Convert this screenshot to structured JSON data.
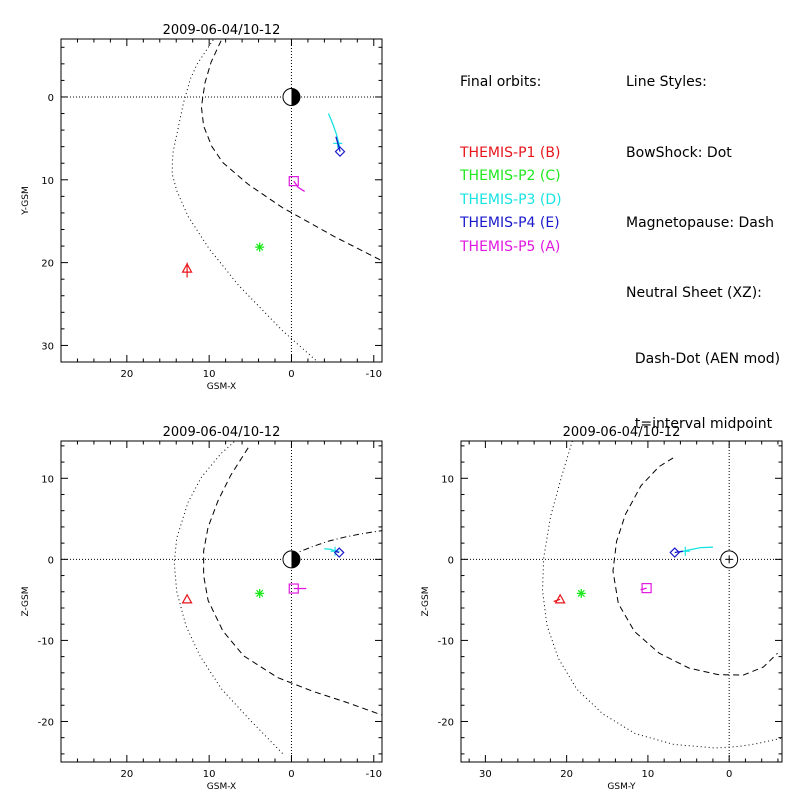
{
  "legend": {
    "orbits_title": "Final orbits:",
    "probes": [
      {
        "label": "THEMIS-P1 (B)",
        "color": "#e8151b"
      },
      {
        "label": "THEMIS-P2 (C)",
        "color": "#1ee81e"
      },
      {
        "label": "THEMIS-P3 (D)",
        "color": "#17e3e3"
      },
      {
        "label": "THEMIS-P4 (E)",
        "color": "#1a1acc"
      },
      {
        "label": "THEMIS-P5 (A)",
        "color": "#e019e0"
      }
    ],
    "styles_title": "Line Styles:",
    "styles": [
      "BowShock: Dot",
      "Magnetopause: Dash",
      "Neutral Sheet (XZ):",
      "  Dash-Dot (AEN mod)",
      "  t=interval midpoint"
    ]
  },
  "chart_data": [
    {
      "type": "scatter",
      "title": "2009-06-04/10-12",
      "xlabel": "GSM-X",
      "ylabel": "Y-GSM",
      "xlim": [
        28,
        -11
      ],
      "ylim": [
        -7,
        32
      ],
      "xticks": [
        20,
        10,
        0,
        -10
      ],
      "yticks": [
        0,
        10,
        20,
        30
      ],
      "earth": "half",
      "bowshock": {
        "x": [
          7.04,
          9.43,
          11.46,
          12.27,
          13.11,
          14.37,
          14.47,
          14.49,
          13.94,
          12.54,
          10.03,
          6.42,
          1.13,
          -4.38
        ],
        "y": [
          -9.22,
          -7.02,
          -3.96,
          -2.2,
          0.68,
          6.58,
          7.93,
          9.29,
          11.31,
          14.45,
          18.29,
          22.75,
          28.18,
          33.05
        ]
      },
      "magnetopause": {
        "x": [
          8.55,
          9.76,
          10.51,
          10.94,
          10.67,
          9.68,
          8.33,
          5.26,
          1.06,
          -5.26,
          -11.0
        ],
        "y": [
          -6.8,
          -4.22,
          -1.71,
          1.19,
          3.51,
          5.97,
          7.93,
          10.54,
          13.38,
          16.88,
          19.78
        ]
      },
      "probes": [
        {
          "name": "THEMIS-P1 (B)",
          "marker": "triangle",
          "x": 12.68,
          "y": 20.71,
          "track": {
            "x": [
              12.6,
              12.72,
              12.8
            ],
            "y": 20.0,
            "y_end": 21.8
          }
        },
        {
          "name": "THEMIS-P2 (C)",
          "marker": "asterisk",
          "x": 3.86,
          "y": 18.13
        },
        {
          "name": "THEMIS-P3 (D)",
          "marker": "cross",
          "x": -5.62,
          "y": 5.6,
          "track": {
            "x": [
              -4.5,
              -5.0,
              -5.5,
              -5.9
            ],
            "y": [
              2.0,
              3.2,
              4.6,
              6.2
            ]
          }
        },
        {
          "name": "THEMIS-P4 (E)",
          "marker": "diamond",
          "x": -5.9,
          "y": 6.6,
          "track": {
            "x": [
              -5.4,
              -5.7,
              -5.9
            ],
            "y": [
              4.8,
              5.8,
              6.6
            ]
          }
        },
        {
          "name": "THEMIS-P5 (A)",
          "marker": "square",
          "x": -0.28,
          "y": 10.16,
          "track": {
            "x": [
              -0.28,
              -0.8,
              -1.6
            ],
            "y": [
              10.16,
              10.9,
              11.4
            ]
          }
        }
      ]
    },
    {
      "type": "scatter",
      "title": "2009-06-04/10-12",
      "xlabel": "GSM-X",
      "ylabel": "Z-GSM",
      "xlim": [
        28,
        -11
      ],
      "ylim": [
        -25,
        14.6
      ],
      "xticks": [
        20,
        10,
        0,
        -10
      ],
      "yticks": [
        10,
        0,
        -10,
        -20
      ],
      "earth": "half",
      "bowshock": {
        "x": [
          6.96,
          8.55,
          10.94,
          12.57,
          13.94,
          14.24,
          13.94,
          12.8,
          11.12,
          8.55,
          5.26,
          1.06
        ],
        "y": [
          14.5,
          13.06,
          10.13,
          7.02,
          2.62,
          -0.43,
          -3.97,
          -8.24,
          -11.9,
          -15.93,
          -19.58,
          -23.97
        ]
      },
      "magnetopause": {
        "x": [
          5.26,
          7.37,
          8.91,
          10.13,
          10.67,
          10.67,
          10.13,
          8.33,
          5.81,
          1.69,
          -2.61,
          -6.66,
          -11.0
        ],
        "y": [
          13.76,
          10.38,
          7.26,
          3.97,
          1.04,
          -2.0,
          -5.06,
          -8.84,
          -11.9,
          -14.58,
          -16.29,
          -17.63,
          -19.21
        ]
      },
      "neutral_sheet": {
        "x": [
          0.0,
          -1.0,
          -2.5,
          -4.5,
          -6.5,
          -8.5,
          -11.0
        ],
        "y": [
          0.5,
          0.95,
          1.55,
          2.25,
          2.75,
          3.15,
          3.55
        ]
      },
      "probes": [
        {
          "name": "THEMIS-P1 (B)",
          "marker": "triangle",
          "x": 12.68,
          "y": -4.93
        },
        {
          "name": "THEMIS-P2 (C)",
          "marker": "asterisk",
          "x": 3.86,
          "y": -4.2
        },
        {
          "name": "THEMIS-P3 (D)",
          "marker": "cross",
          "x": -5.3,
          "y": 1.0,
          "track": {
            "x": [
              -4.0,
              -4.8,
              -5.6
            ],
            "y": [
              1.3,
              1.25,
              0.9
            ]
          }
        },
        {
          "name": "THEMIS-P4 (E)",
          "marker": "diamond",
          "x": -5.8,
          "y": 0.84,
          "track": {
            "x": [
              -5.3,
              -5.8
            ],
            "y": [
              1.0,
              0.84
            ]
          }
        },
        {
          "name": "THEMIS-P5 (A)",
          "marker": "square",
          "x": -0.28,
          "y": -3.6,
          "track": {
            "x": [
              -0.28,
              -1.8
            ],
            "y": [
              -3.6,
              -3.6
            ]
          }
        }
      ]
    },
    {
      "type": "scatter",
      "title": "2009-06-04/10-12",
      "xlabel": "GSM-Y",
      "ylabel": "Z-GSM",
      "xlim": [
        33,
        -6.5
      ],
      "ylim": [
        -25,
        14.6
      ],
      "xticks": [
        30,
        20,
        10,
        0
      ],
      "yticks": [
        10,
        0,
        -10,
        -20
      ],
      "earth": "full",
      "bowshock": {
        "x": [
          19.3,
          20.65,
          21.97,
          22.82,
          22.97,
          22.44,
          21.02,
          18.75,
          15.56,
          11.56,
          6.79,
          1.68,
          -1.09,
          -3.14,
          -6.5
        ],
        "y": [
          14.6,
          10.13,
          5.32,
          0.2,
          -3.79,
          -8.07,
          -12.22,
          -16.01,
          -19.06,
          -21.5,
          -22.84,
          -23.27,
          -23.09,
          -22.79,
          -22.05
        ]
      },
      "magnetopause": {
        "x": [
          6.9,
          8.65,
          10.86,
          12.76,
          13.86,
          14.3,
          13.64,
          11.65,
          8.61,
          4.93,
          1.37,
          -1.73,
          -4.22,
          -5.95
        ],
        "y": [
          12.51,
          11.42,
          9.07,
          5.56,
          2.21,
          -1.43,
          -5.45,
          -8.9,
          -11.58,
          -13.42,
          -14.22,
          -14.28,
          -13.28,
          -11.58
        ]
      },
      "probes": [
        {
          "name": "THEMIS-P1 (B)",
          "marker": "triangle",
          "x": 20.8,
          "y": -4.93,
          "track": {
            "x": [
              20.8,
              21.6
            ],
            "y": [
              -4.93,
              -5.2
            ]
          }
        },
        {
          "name": "THEMIS-P2 (C)",
          "marker": "asterisk",
          "x": 18.2,
          "y": -4.2
        },
        {
          "name": "THEMIS-P3 (D)",
          "marker": "cross",
          "x": 5.4,
          "y": 1.0,
          "track": {
            "x": [
              2.0,
              3.5,
              5.0,
              6.0
            ],
            "y": [
              1.5,
              1.45,
              1.15,
              0.9
            ]
          }
        },
        {
          "name": "THEMIS-P4 (E)",
          "marker": "diamond",
          "x": 6.7,
          "y": 0.84,
          "track": {
            "x": [
              5.7,
              6.7
            ],
            "y": [
              1.0,
              0.84
            ]
          }
        },
        {
          "name": "THEMIS-P5 (A)",
          "marker": "square",
          "x": 10.16,
          "y": -3.55,
          "track": {
            "x": [
              10.16,
              10.9
            ],
            "y": [
              -3.55,
              -3.75
            ]
          }
        }
      ]
    }
  ]
}
